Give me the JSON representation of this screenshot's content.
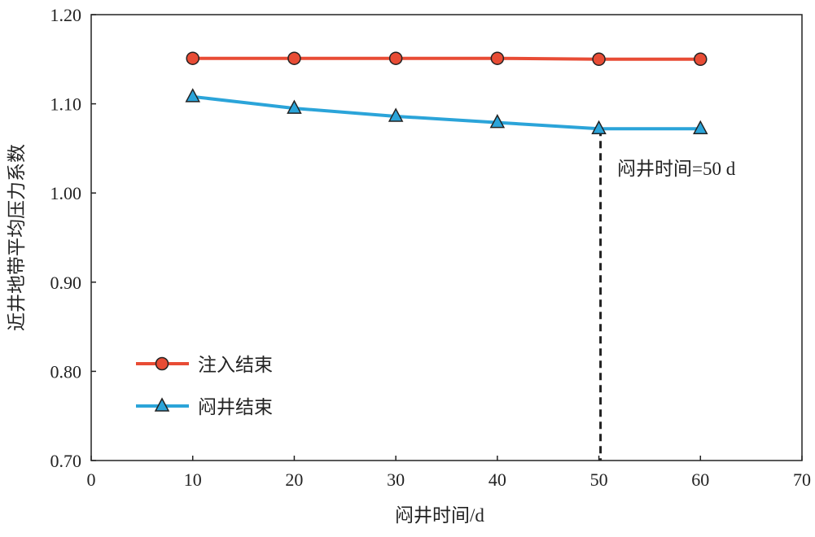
{
  "chart_data": {
    "type": "line",
    "title": "",
    "xlabel": "闷井时间/d",
    "ylabel": "近井地带平均压力系数",
    "xlim": [
      0,
      70
    ],
    "ylim": [
      0.7,
      1.2
    ],
    "xticks": [
      "0",
      "10",
      "20",
      "30",
      "40",
      "50",
      "60",
      "70"
    ],
    "yticks": [
      "0.70",
      "0.80",
      "0.90",
      "1.00",
      "1.10",
      "1.20"
    ],
    "x": [
      10,
      20,
      30,
      40,
      50,
      60
    ],
    "series": [
      {
        "name": "注入结束",
        "values": [
          1.151,
          1.151,
          1.151,
          1.151,
          1.15,
          1.15
        ],
        "color": "#e84c35",
        "marker": "circle"
      },
      {
        "name": "闷井结束",
        "values": [
          1.108,
          1.095,
          1.086,
          1.079,
          1.072,
          1.072
        ],
        "color": "#2ba4d9",
        "marker": "triangle"
      }
    ],
    "annotation": {
      "text": "闷井时间=50 d",
      "x": 50
    },
    "grid": false,
    "legend_position": "bottom-left"
  }
}
